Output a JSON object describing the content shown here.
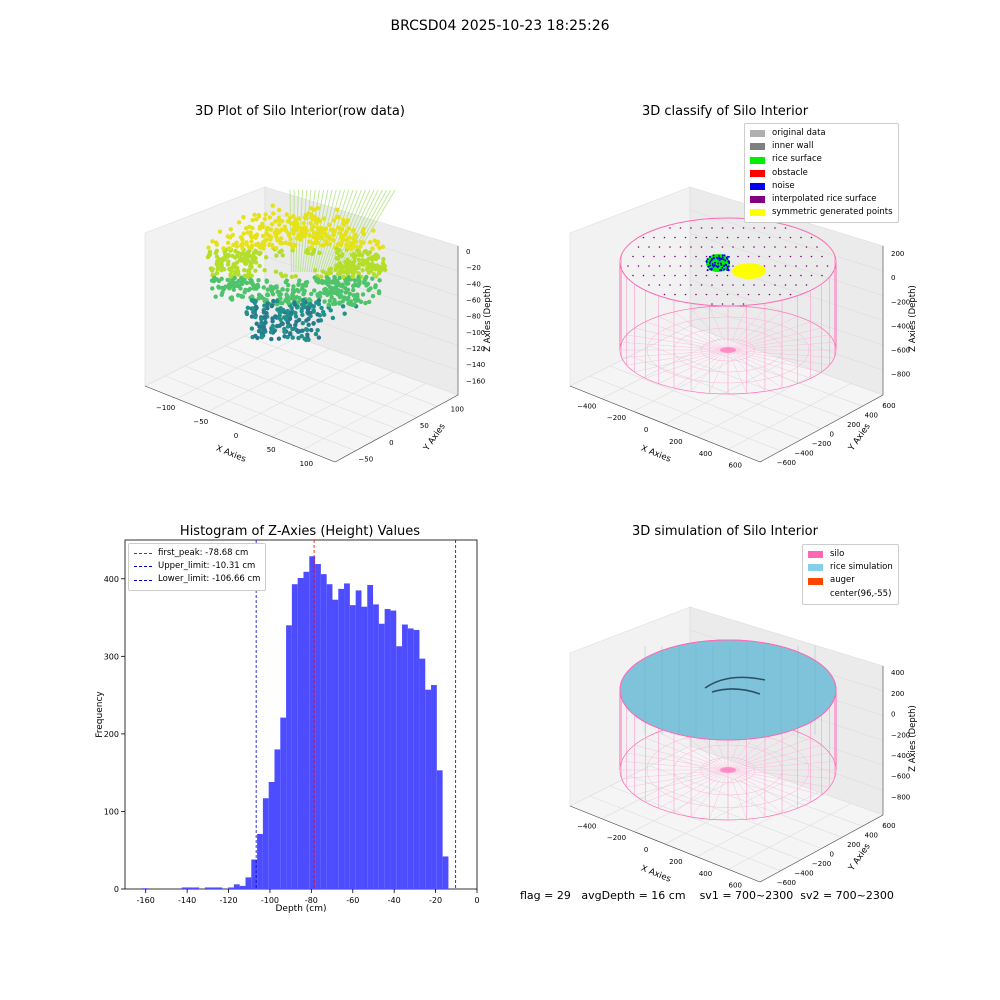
{
  "figure_title": "BRCSD04 2025-10-23 18:25:26",
  "status_line": {
    "flag": "flag = 29",
    "avg_depth": "avgDepth = 16 cm",
    "sv1": "sv1 = 700~2300",
    "sv2": "sv2 = 700~2300"
  },
  "panels": {
    "raw": {
      "title": "3D Plot of Silo Interior(row data)",
      "xlabel": "X Axies",
      "ylabel": "Y Axies",
      "zlabel": "Z Axies (Depth)",
      "x_ticks": [
        "−100",
        "−50",
        "0",
        "50",
        "100"
      ],
      "y_ticks": [
        "−50",
        "0",
        "50",
        "100"
      ],
      "z_ticks": [
        "0",
        "−20",
        "−40",
        "−60",
        "−80",
        "−100",
        "−120",
        "−140",
        "−160"
      ]
    },
    "classify": {
      "title": "3D classify of Silo Interior",
      "xlabel": "X Axies",
      "ylabel": "Y Axies",
      "zlabel": "Z Axies (Depth)",
      "x_ticks": [
        "−400",
        "−200",
        "0",
        "200",
        "400",
        "600"
      ],
      "y_ticks": [
        "−600",
        "−400",
        "−200",
        "0",
        "200",
        "400",
        "600"
      ],
      "z_ticks": [
        "200",
        "0",
        "−200",
        "−400",
        "−600",
        "−800"
      ],
      "legend": [
        {
          "label": "original data",
          "color": "#b0b0b0"
        },
        {
          "label": "inner wall",
          "color": "#808080"
        },
        {
          "label": "rice surface",
          "color": "#00ee00"
        },
        {
          "label": "obstacle",
          "color": "#ff0000"
        },
        {
          "label": "noise",
          "color": "#0000ee"
        },
        {
          "label": "interpolated rice surface",
          "color": "#800080"
        },
        {
          "label": "symmetric generated points",
          "color": "#ffff00"
        }
      ]
    },
    "simulation": {
      "title": "3D simulation of Silo Interior",
      "xlabel": "X Axies",
      "ylabel": "Y Axies",
      "zlabel": "Z Axies (Depth)",
      "x_ticks": [
        "−400",
        "−200",
        "0",
        "200",
        "400",
        "600"
      ],
      "y_ticks": [
        "−600",
        "−400",
        "−200",
        "0",
        "200",
        "400",
        "600"
      ],
      "z_ticks": [
        "400",
        "200",
        "0",
        "−200",
        "−400",
        "−600",
        "−800"
      ],
      "legend": [
        {
          "label": "silo",
          "color": "#ff69b4"
        },
        {
          "label": "rice simulation",
          "color": "#87ceeb"
        },
        {
          "label": "auger",
          "color": "#ff4500"
        },
        {
          "label": "center(96,-55)",
          "color": ""
        }
      ]
    }
  },
  "chart_data": {
    "type": "bar",
    "title": "Histogram of Z-Axies (Height) Values",
    "xlabel": "Depth (cm)",
    "ylabel": "Frequency",
    "xlim": [
      -170,
      0
    ],
    "ylim": [
      0,
      450
    ],
    "x_ticks": [
      -160,
      -140,
      -120,
      -100,
      -80,
      -60,
      -40,
      -20,
      0
    ],
    "y_ticks": [
      0,
      100,
      200,
      300,
      400
    ],
    "bar_color": "#4d4dff",
    "bins": [
      {
        "x0": -161.8,
        "x1": -159.0,
        "count": 1
      },
      {
        "x0": -142.6,
        "x1": -137.0,
        "count": 2
      },
      {
        "x0": -137.0,
        "x1": -134.2,
        "count": 2
      },
      {
        "x0": -131.4,
        "x1": -128.6,
        "count": 2
      },
      {
        "x0": -128.6,
        "x1": -125.8,
        "count": 2
      },
      {
        "x0": -125.8,
        "x1": -123.0,
        "count": 2
      },
      {
        "x0": -120.2,
        "x1": -117.4,
        "count": 2
      },
      {
        "x0": -117.4,
        "x1": -114.6,
        "count": 6
      },
      {
        "x0": -114.6,
        "x1": -111.8,
        "count": 4
      },
      {
        "x0": -111.8,
        "x1": -109.0,
        "count": 15
      },
      {
        "x0": -109.0,
        "x1": -106.2,
        "count": 38
      },
      {
        "x0": -106.2,
        "x1": -103.4,
        "count": 71
      },
      {
        "x0": -103.4,
        "x1": -100.6,
        "count": 117
      },
      {
        "x0": -100.6,
        "x1": -97.8,
        "count": 138
      },
      {
        "x0": -97.8,
        "x1": -95.0,
        "count": 180
      },
      {
        "x0": -95.0,
        "x1": -92.2,
        "count": 221
      },
      {
        "x0": -92.2,
        "x1": -89.4,
        "count": 340
      },
      {
        "x0": -89.4,
        "x1": -86.6,
        "count": 393
      },
      {
        "x0": -86.6,
        "x1": -83.8,
        "count": 401
      },
      {
        "x0": -83.8,
        "x1": -81.0,
        "count": 409
      },
      {
        "x0": -81.0,
        "x1": -78.2,
        "count": 429
      },
      {
        "x0": -78.2,
        "x1": -75.4,
        "count": 419
      },
      {
        "x0": -75.4,
        "x1": -72.6,
        "count": 406
      },
      {
        "x0": -72.6,
        "x1": -69.8,
        "count": 393
      },
      {
        "x0": -69.8,
        "x1": -67.0,
        "count": 373
      },
      {
        "x0": -67.0,
        "x1": -64.2,
        "count": 387
      },
      {
        "x0": -64.2,
        "x1": -61.4,
        "count": 394
      },
      {
        "x0": -61.4,
        "x1": -58.6,
        "count": 366
      },
      {
        "x0": -58.6,
        "x1": -55.8,
        "count": 385
      },
      {
        "x0": -55.8,
        "x1": -53.0,
        "count": 364
      },
      {
        "x0": -53.0,
        "x1": -50.2,
        "count": 392
      },
      {
        "x0": -50.2,
        "x1": -47.4,
        "count": 367
      },
      {
        "x0": -47.4,
        "x1": -44.6,
        "count": 342
      },
      {
        "x0": -44.6,
        "x1": -41.8,
        "count": 361
      },
      {
        "x0": -41.8,
        "x1": -39.0,
        "count": 359
      },
      {
        "x0": -39.0,
        "x1": -36.2,
        "count": 313
      },
      {
        "x0": -36.2,
        "x1": -33.4,
        "count": 341
      },
      {
        "x0": -33.4,
        "x1": -30.6,
        "count": 336
      },
      {
        "x0": -30.6,
        "x1": -27.8,
        "count": 334
      },
      {
        "x0": -27.8,
        "x1": -25.0,
        "count": 297
      },
      {
        "x0": -25.0,
        "x1": -22.2,
        "count": 257
      },
      {
        "x0": -22.2,
        "x1": -19.4,
        "count": 263
      },
      {
        "x0": -19.4,
        "x1": -16.6,
        "count": 153
      },
      {
        "x0": -16.6,
        "x1": -13.8,
        "count": 42
      }
    ],
    "reference_lines": [
      {
        "label": "first_peak: -78.68 cm",
        "x": -78.68,
        "color": "#ff0000"
      },
      {
        "label": "Upper_limit: -10.31 cm",
        "x": -10.31,
        "color": "#0000cc"
      },
      {
        "label": "Lower_limit: -106.66 cm",
        "x": -106.66,
        "color": "#0000cc"
      }
    ],
    "legend_position": "upper-left"
  }
}
